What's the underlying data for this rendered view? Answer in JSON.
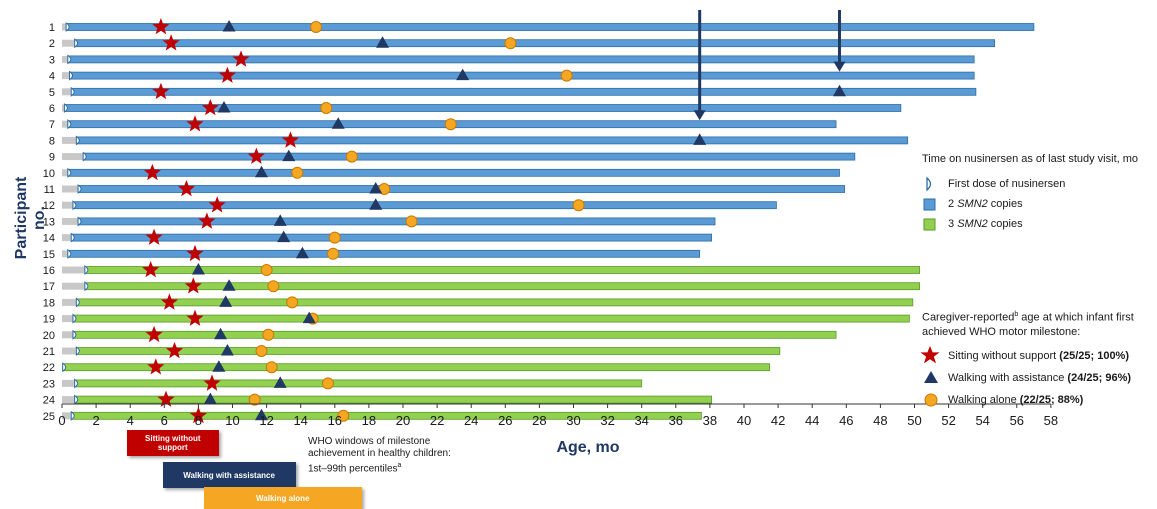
{
  "chart_data": {
    "type": "bar",
    "ylabel": "Participant no.",
    "xlabel": "Age, mo",
    "xlim": [
      0,
      58
    ],
    "x_ticks": [
      "0",
      "2",
      "4",
      "6",
      "8",
      "10",
      "12",
      "14",
      "16",
      "18",
      "20",
      "22",
      "24",
      "26",
      "28",
      "30",
      "32",
      "34",
      "36",
      "38",
      "40",
      "42",
      "44",
      "46",
      "48",
      "50",
      "52",
      "54",
      "56",
      "58"
    ],
    "participants": [
      {
        "id": "1",
        "first_dose": 0.3,
        "end": 57,
        "copies": 2,
        "sitting": 5.8,
        "walk_assist": 9.8,
        "walk_alone": 14.9
      },
      {
        "id": "2",
        "first_dose": 0.8,
        "end": 54.7,
        "copies": 2,
        "sitting": 6.4,
        "walk_assist": 18.8,
        "walk_alone": 26.3
      },
      {
        "id": "3",
        "first_dose": 0.4,
        "end": 53.5,
        "copies": 2,
        "sitting": 10.5,
        "walk_assist": null,
        "walk_alone": null
      },
      {
        "id": "4",
        "first_dose": 0.5,
        "end": 53.5,
        "copies": 2,
        "sitting": 9.7,
        "walk_assist": 23.5,
        "walk_alone": 29.6
      },
      {
        "id": "5",
        "first_dose": 0.6,
        "end": 53.6,
        "copies": 2,
        "sitting": 5.8,
        "walk_assist": 45.6,
        "walk_alone": null
      },
      {
        "id": "6",
        "first_dose": 0.2,
        "end": 49.2,
        "copies": 2,
        "sitting": 8.7,
        "walk_assist": 9.5,
        "walk_alone": 15.5
      },
      {
        "id": "7",
        "first_dose": 0.4,
        "end": 45.4,
        "copies": 2,
        "sitting": 7.8,
        "walk_assist": 16.2,
        "walk_alone": 22.8
      },
      {
        "id": "8",
        "first_dose": 0.9,
        "end": 49.6,
        "copies": 2,
        "sitting": 13.4,
        "walk_assist": 37.4,
        "walk_alone": null
      },
      {
        "id": "9",
        "first_dose": 1.3,
        "end": 46.5,
        "copies": 2,
        "sitting": 11.4,
        "walk_assist": 13.3,
        "walk_alone": 17.0
      },
      {
        "id": "10",
        "first_dose": 0.4,
        "end": 45.6,
        "copies": 2,
        "sitting": 5.3,
        "walk_assist": 11.7,
        "walk_alone": 13.8
      },
      {
        "id": "11",
        "first_dose": 1.0,
        "end": 45.9,
        "copies": 2,
        "sitting": 7.3,
        "walk_assist": 18.4,
        "walk_alone": 18.9
      },
      {
        "id": "12",
        "first_dose": 0.7,
        "end": 41.9,
        "copies": 2,
        "sitting": 9.1,
        "walk_assist": 18.4,
        "walk_alone": 30.3
      },
      {
        "id": "13",
        "first_dose": 1.0,
        "end": 38.3,
        "copies": 2,
        "sitting": 8.5,
        "walk_assist": 12.8,
        "walk_alone": 20.5
      },
      {
        "id": "14",
        "first_dose": 0.6,
        "end": 38.1,
        "copies": 2,
        "sitting": 5.4,
        "walk_assist": 13.0,
        "walk_alone": 16.0
      },
      {
        "id": "15",
        "first_dose": 0.4,
        "end": 37.4,
        "copies": 2,
        "sitting": 7.8,
        "walk_assist": 14.1,
        "walk_alone": 15.9
      },
      {
        "id": "16",
        "first_dose": 1.4,
        "end": 50.3,
        "copies": 3,
        "sitting": 5.2,
        "walk_assist": 8.0,
        "walk_alone": 12.0
      },
      {
        "id": "17",
        "first_dose": 1.4,
        "end": 50.3,
        "copies": 3,
        "sitting": 7.7,
        "walk_assist": 9.8,
        "walk_alone": 12.4
      },
      {
        "id": "18",
        "first_dose": 0.9,
        "end": 49.9,
        "copies": 3,
        "sitting": 6.3,
        "walk_assist": 9.6,
        "walk_alone": 13.5
      },
      {
        "id": "19",
        "first_dose": 0.7,
        "end": 49.7,
        "copies": 3,
        "sitting": 7.8,
        "walk_assist": 14.5,
        "walk_alone": 14.7
      },
      {
        "id": "20",
        "first_dose": 0.7,
        "end": 45.4,
        "copies": 3,
        "sitting": 5.4,
        "walk_assist": 9.3,
        "walk_alone": 12.1
      },
      {
        "id": "21",
        "first_dose": 0.9,
        "end": 42.1,
        "copies": 3,
        "sitting": 6.6,
        "walk_assist": 9.7,
        "walk_alone": 11.7
      },
      {
        "id": "22",
        "first_dose": 0.1,
        "end": 41.5,
        "copies": 3,
        "sitting": 5.5,
        "walk_assist": 9.2,
        "walk_alone": 12.3
      },
      {
        "id": "23",
        "first_dose": 0.8,
        "end": 34.0,
        "copies": 3,
        "sitting": 8.8,
        "walk_assist": 12.8,
        "walk_alone": 15.6
      },
      {
        "id": "24",
        "first_dose": 0.8,
        "end": 38.1,
        "copies": 3,
        "sitting": 6.1,
        "walk_assist": 8.7,
        "walk_alone": 11.3
      },
      {
        "id": "25",
        "first_dose": 0.6,
        "end": 37.5,
        "copies": 3,
        "sitting": 8.0,
        "walk_assist": 11.7,
        "walk_alone": 16.5
      }
    ],
    "arrows": [
      {
        "x": 37.4,
        "to_participant": "7"
      },
      {
        "x": 45.6,
        "to_participant": "4"
      }
    ],
    "who_windows": [
      {
        "label": "Sitting without support",
        "start": 3.8,
        "end": 9.2
      },
      {
        "label": "Walking with assistance",
        "start": 5.9,
        "end": 13.7
      },
      {
        "label": "Walking alone",
        "start": 8.3,
        "end": 17.6
      }
    ]
  },
  "legend": {
    "time_heading": "Time on nusinersen as of last study visit, mo",
    "first_dose": "First dose of nusinersen",
    "two_copies_pre": "2 ",
    "two_copies_gene": "SMN2",
    "two_copies_post": " copies",
    "three_copies_pre": "3 ",
    "three_copies_gene": "SMN2",
    "three_copies_post": " copies",
    "caregiver_heading_1": "Caregiver-reported",
    "caregiver_sup": "b",
    "caregiver_heading_2": " age at which infant first",
    "caregiver_heading_3": "achieved WHO motor milestone:",
    "sitting_label": "Sitting without support ",
    "sitting_stat": "(25/25; 100%)",
    "walk_assist_label": "Walking with assistance ",
    "walk_assist_stat": "(24/25; 96%)",
    "walk_alone_label": "Walking alone ",
    "walk_alone_stat": "(22/25; 88%)"
  },
  "who_note": {
    "line1": "WHO windows of milestone",
    "line2": "achievement in healthy children:",
    "line3": "1st–99th percentiles",
    "sup": "a"
  },
  "colors": {
    "blue_bar": "#5b9bd5",
    "blue_border": "#2e6da4",
    "green_bar": "#92d050",
    "green_border": "#5a9a2a",
    "pre_dose": "#c8c8c8",
    "star": "#c00000",
    "triangle": "#1f3864",
    "circle": "#f5a623",
    "arrow": "#1f3864",
    "win_sitting": "#c00000",
    "win_assist": "#1f3864",
    "win_alone": "#f5a623"
  }
}
